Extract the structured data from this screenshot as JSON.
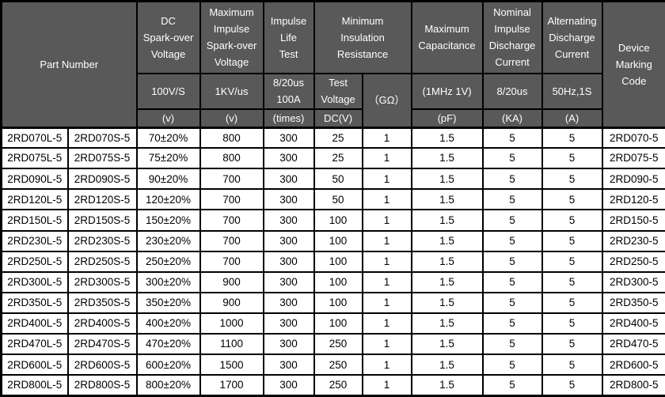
{
  "table": {
    "header": {
      "part_number": "Part Number",
      "dc_sparkover": {
        "title": "DC\nSpark-over\nVoltage",
        "condition": "100V/S",
        "unit": "(v)"
      },
      "max_impulse_sparkover": {
        "title": "Maximum\nImpulse\nSpark-over\nVoltage",
        "condition": "1KV/us",
        "unit": "(v)"
      },
      "impulse_life": {
        "title": "Impulse\nLife\nTest",
        "condition": "8/20us\n100A",
        "unit": "(times)"
      },
      "min_insulation": {
        "title": "Minimum\nInsulation\nResistance",
        "test_voltage": "Test\nVoltage",
        "test_voltage_unit": "DC(V)",
        "resistance_unit": "（GΩ）"
      },
      "max_capacitance": {
        "title": "Maximum\nCapacitance",
        "condition": "(1MHz 1V)",
        "unit": "(pF)"
      },
      "nominal_impulse_discharge": {
        "title": "Nominal\nImpulse\nDischarge\nCurrent",
        "condition": "8/20us",
        "unit": "(KA)"
      },
      "alternating_discharge": {
        "title": "Alternating\nDischarge\nCurrent",
        "condition": "50Hz,1S",
        "unit": "(A)"
      },
      "device_marking": "Device\nMarking\nCode"
    },
    "rows": [
      [
        "2RD070L-5",
        "2RD070S-5",
        "70±20%",
        "800",
        "300",
        "25",
        "1",
        "1.5",
        "5",
        "5",
        "2RD070-5"
      ],
      [
        "2RD075L-5",
        "2RD075S-5",
        "75±20%",
        "800",
        "300",
        "25",
        "1",
        "1.5",
        "5",
        "5",
        "2RD075-5"
      ],
      [
        "2RD090L-5",
        "2RD090S-5",
        "90±20%",
        "700",
        "300",
        "50",
        "1",
        "1.5",
        "5",
        "5",
        "2RD090-5"
      ],
      [
        "2RD120L-5",
        "2RD120S-5",
        "120±20%",
        "700",
        "300",
        "50",
        "1",
        "1.5",
        "5",
        "5",
        "2RD120-5"
      ],
      [
        "2RD150L-5",
        "2RD150S-5",
        "150±20%",
        "700",
        "300",
        "100",
        "1",
        "1.5",
        "5",
        "5",
        "2RD150-5"
      ],
      [
        "2RD230L-5",
        "2RD230S-5",
        "230±20%",
        "700",
        "300",
        "100",
        "1",
        "1.5",
        "5",
        "5",
        "2RD230-5"
      ],
      [
        "2RD250L-5",
        "2RD250S-5",
        "250±20%",
        "700",
        "300",
        "100",
        "1",
        "1.5",
        "5",
        "5",
        "2RD250-5"
      ],
      [
        "2RD300L-5",
        "2RD300S-5",
        "300±20%",
        "900",
        "300",
        "100",
        "1",
        "1.5",
        "5",
        "5",
        "2RD300-5"
      ],
      [
        "2RD350L-5",
        "2RD350S-5",
        "350±20%",
        "900",
        "300",
        "100",
        "1",
        "1.5",
        "5",
        "5",
        "2RD350-5"
      ],
      [
        "2RD400L-5",
        "2RD400S-5",
        "400±20%",
        "1000",
        "300",
        "100",
        "1",
        "1.5",
        "5",
        "5",
        "2RD400-5"
      ],
      [
        "2RD470L-5",
        "2RD470S-5",
        "470±20%",
        "1100",
        "300",
        "250",
        "1",
        "1.5",
        "5",
        "5",
        "2RD470-5"
      ],
      [
        "2RD600L-5",
        "2RD600S-5",
        "600±20%",
        "1500",
        "300",
        "250",
        "1",
        "1.5",
        "5",
        "5",
        "2RD600-5"
      ],
      [
        "2RD800L-5",
        "2RD800S-5",
        "800±20%",
        "1700",
        "300",
        "250",
        "1",
        "1.5",
        "5",
        "5",
        "2RD800-5"
      ]
    ],
    "colors": {
      "header_bg": "#595959",
      "header_text": "#ffffff",
      "row_bg": "#ffffff",
      "row_text": "#000000",
      "border": "#000000"
    }
  }
}
